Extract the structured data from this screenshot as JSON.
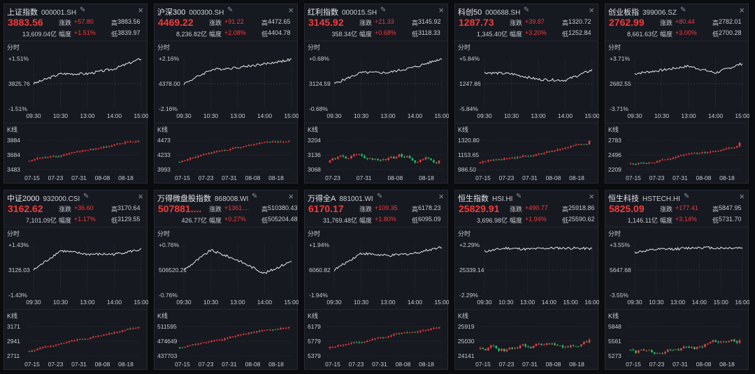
{
  "colors": {
    "up": "#f03c3c",
    "down": "#1fbf6a",
    "line": "#e8e8e8",
    "grid": "#2e323a",
    "bg": "#161920"
  },
  "labels": {
    "change": "涨跌",
    "pct": "幅度",
    "high": "高",
    "low": "低",
    "intraday": "分时",
    "kline": "K线"
  },
  "panels": [
    {
      "name": "上证指数",
      "code": "000001.SH",
      "price": "3883.56",
      "change": "+57.80",
      "pct": "+1.51%",
      "high": "3883.56",
      "low": "3839.97",
      "turnover": "13,609.04亿",
      "intraday": {
        "top": "+1.51%",
        "mid": "3825.76",
        "bottom": "-1.51%",
        "times": [
          "09:30",
          "10:30",
          "13:00",
          "14:00",
          "15:00"
        ]
      },
      "kline": {
        "ticks": [
          "3884",
          "3684",
          "3483"
        ],
        "dates": [
          "07-15",
          "07-23",
          "07-31",
          "08-08",
          "08-18"
        ]
      },
      "chart_data": {
        "type": "line",
        "name": "intraday",
        "x": [
          "09:30",
          "10:30",
          "13:00",
          "14:00",
          "15:00"
        ],
        "y": [
          0.0,
          0.6,
          0.6,
          0.9,
          1.51
        ],
        "ylim": [
          -1.51,
          1.51
        ]
      }
    },
    {
      "name": "沪深300",
      "code": "000300.SH",
      "price": "4469.22",
      "change": "+91.22",
      "pct": "+2.08%",
      "high": "4472.65",
      "low": "4404.78",
      "turnover": "8,236.82亿",
      "intraday": {
        "top": "+2.16%",
        "mid": "4378.00",
        "bottom": "-2.16%",
        "times": [
          "09:30",
          "10:30",
          "13:00",
          "14:00",
          "15:00"
        ]
      },
      "kline": {
        "ticks": [
          "4473",
          "4233",
          "3993"
        ],
        "dates": [
          "07-15",
          "07-23",
          "07-31",
          "08-08",
          "08-18"
        ]
      }
    },
    {
      "name": "红利指数",
      "code": "000015.SH",
      "price": "3145.92",
      "change": "+21.33",
      "pct": "+0.68%",
      "high": "3145.92",
      "low": "3118.33",
      "turnover": "358.34亿",
      "intraday": {
        "top": "+0.68%",
        "mid": "3124.59",
        "bottom": "-0.68%",
        "times": [
          "09:30",
          "10:30",
          "13:00",
          "14:00",
          "15:00"
        ]
      },
      "kline": {
        "ticks": [
          "3204",
          "3136",
          "3068"
        ],
        "dates": [
          "07-23",
          "07-31",
          "08-08",
          "08-18"
        ]
      }
    },
    {
      "name": "科创50",
      "code": "000688.SH",
      "price": "1287.73",
      "change": "+39.87",
      "pct": "+3.20%",
      "high": "1320.72",
      "low": "1252.84",
      "turnover": "1,345.40亿",
      "intraday": {
        "top": "+5.84%",
        "mid": "1247.86",
        "bottom": "-5.84%",
        "times": [
          "09:30",
          "10:30",
          "13:00",
          "14:00",
          "15:00"
        ]
      },
      "kline": {
        "ticks": [
          "1320.80",
          "1153.65",
          "986.50"
        ],
        "dates": [
          "07-15",
          "07-23",
          "07-31",
          "08-08",
          "08-18"
        ]
      }
    },
    {
      "name": "创业板指",
      "code": "399006.SZ",
      "price": "2762.99",
      "change": "+80.44",
      "pct": "+3.00%",
      "high": "2782.01",
      "low": "2700.28",
      "turnover": "8,661.63亿",
      "intraday": {
        "top": "+3.71%",
        "mid": "2682.55",
        "bottom": "-3.71%",
        "times": [
          "09:30",
          "10:30",
          "13:00",
          "14:00",
          "15:00"
        ]
      },
      "kline": {
        "ticks": [
          "2783",
          "2496",
          "2209"
        ],
        "dates": [
          "07-15",
          "07-23",
          "07-31",
          "08-08",
          "08-18"
        ]
      }
    },
    {
      "name": "中证2000",
      "code": "932000.CSI",
      "price": "3162.62",
      "change": "+36.60",
      "pct": "+1.17%",
      "high": "3170.64",
      "low": "3129.55",
      "turnover": "7,101.09亿",
      "intraday": {
        "top": "+1.43%",
        "mid": "3126.03",
        "bottom": "-1.43%",
        "times": [
          "09:30",
          "10:30",
          "13:00",
          "14:00",
          "15:00"
        ]
      },
      "kline": {
        "ticks": [
          "3171",
          "2941",
          "2711"
        ],
        "dates": [
          "07-15",
          "07-23",
          "07-31",
          "08-08",
          "08-18"
        ]
      }
    },
    {
      "name": "万得微盘股指数",
      "code": "868008.WI",
      "price": "507881....",
      "change": "+1361....",
      "pct": "+0.27%",
      "high": "510380.43",
      "low": "505204.48",
      "turnover": "426.77亿",
      "intraday": {
        "top": "+0.76%",
        "mid": "506520.21",
        "bottom": "-0.76%",
        "times": [
          "09:30",
          "10:30",
          "13:00",
          "14:00",
          "15:00"
        ]
      },
      "kline": {
        "ticks": [
          "511595",
          "474649",
          "437703"
        ],
        "dates": [
          "07-15",
          "07-23",
          "07-31",
          "08-08",
          "08-18"
        ]
      }
    },
    {
      "name": "万得全A",
      "code": "881001.WI",
      "price": "6170.17",
      "change": "+109.35",
      "pct": "+1.80%",
      "high": "6178.23",
      "low": "6095.09",
      "turnover": "31,769.48亿",
      "intraday": {
        "top": "+1.94%",
        "mid": "6060.82",
        "bottom": "-1.94%",
        "times": [
          "09:30",
          "10:30",
          "13:00",
          "14:00",
          "15:00"
        ]
      },
      "kline": {
        "ticks": [
          "6179",
          "5779",
          "5379"
        ],
        "dates": [
          "07-15",
          "07-23",
          "07-31",
          "08-08",
          "08-18"
        ]
      }
    },
    {
      "name": "恒生指数",
      "code": "HSI.HI",
      "price": "25829.91",
      "change": "+490.77",
      "pct": "+1.94%",
      "high": "25918.86",
      "low": "25590.62",
      "turnover": "3,696.98亿",
      "intraday": {
        "top": "+2.29%",
        "mid": "25339.14",
        "bottom": "-2.29%",
        "times": [
          "09:30",
          "10:30",
          "13:00",
          "14:00",
          "15:00",
          "16:00"
        ]
      },
      "kline": {
        "ticks": [
          "25919",
          "25030",
          "24141"
        ],
        "dates": [
          "07-15",
          "07-23",
          "07-31",
          "08-08",
          "08-18"
        ]
      }
    },
    {
      "name": "恒生科技",
      "code": "HSTECH.HI",
      "price": "5825.09",
      "change": "+177.41",
      "pct": "+3.14%",
      "high": "5847.95",
      "low": "5731.70",
      "turnover": "1,146.11亿",
      "intraday": {
        "top": "+3.55%",
        "mid": "5647.68",
        "bottom": "-3.55%",
        "times": [
          "09:30",
          "10:30",
          "13:00",
          "14:00",
          "15:00",
          "16:00"
        ]
      },
      "kline": {
        "ticks": [
          "5848",
          "5561",
          "5273"
        ],
        "dates": [
          "07-15",
          "07-23",
          "07-31",
          "08-08",
          "08-18"
        ]
      }
    }
  ],
  "chart_data": [
    {
      "type": "line",
      "title": "上证指数 分时",
      "y_unit": "%",
      "x": [
        "09:30",
        "10:30",
        "13:00",
        "14:00",
        "15:00"
      ],
      "y": [
        0.0,
        0.6,
        0.6,
        0.9,
        1.51
      ],
      "ylim": [
        -1.51,
        1.51
      ]
    },
    {
      "type": "line",
      "title": "沪深300 分时",
      "y_unit": "%",
      "x": [
        "09:30",
        "10:30",
        "13:00",
        "14:00",
        "15:00"
      ],
      "y": [
        0.0,
        1.2,
        1.4,
        1.7,
        2.08
      ],
      "ylim": [
        -2.16,
        2.16
      ]
    },
    {
      "type": "line",
      "title": "红利指数 分时",
      "y_unit": "%",
      "x": [
        "09:30",
        "10:30",
        "13:00",
        "14:00",
        "15:00"
      ],
      "y": [
        0.0,
        0.3,
        0.3,
        0.45,
        0.68
      ],
      "ylim": [
        -0.68,
        0.68
      ]
    },
    {
      "type": "line",
      "title": "科创50 分时",
      "y_unit": "%",
      "x": [
        "09:30",
        "10:30",
        "13:00",
        "14:00",
        "15:00"
      ],
      "y": [
        2.6,
        2.3,
        1.0,
        0.8,
        3.2
      ],
      "ylim": [
        -5.84,
        5.84
      ]
    },
    {
      "type": "line",
      "title": "创业板指 分时",
      "y_unit": "%",
      "x": [
        "09:30",
        "10:30",
        "13:00",
        "14:00",
        "15:00"
      ],
      "y": [
        1.5,
        2.0,
        2.6,
        1.6,
        3.0
      ],
      "ylim": [
        -3.71,
        3.71
      ]
    },
    {
      "type": "line",
      "title": "中证2000 分时",
      "y_unit": "%",
      "x": [
        "09:30",
        "10:30",
        "13:00",
        "14:00",
        "15:00"
      ],
      "y": [
        0.0,
        1.1,
        0.9,
        0.9,
        1.17
      ],
      "ylim": [
        -1.43,
        1.43
      ]
    },
    {
      "type": "line",
      "title": "万得微盘股指数 分时",
      "y_unit": "%",
      "x": [
        "09:30",
        "10:30",
        "13:00",
        "14:00",
        "15:00"
      ],
      "y": [
        0.0,
        0.6,
        0.3,
        -0.1,
        0.27
      ],
      "ylim": [
        -0.76,
        0.76
      ]
    },
    {
      "type": "line",
      "title": "万得全A 分时",
      "y_unit": "%",
      "x": [
        "09:30",
        "10:30",
        "13:00",
        "14:00",
        "15:00"
      ],
      "y": [
        0.0,
        1.3,
        1.1,
        1.3,
        1.8
      ],
      "ylim": [
        -1.94,
        1.94
      ]
    },
    {
      "type": "line",
      "title": "恒生指数 分时",
      "y_unit": "%",
      "x": [
        "09:30",
        "10:30",
        "13:00",
        "14:00",
        "15:00",
        "16:00"
      ],
      "y": [
        1.7,
        2.0,
        1.9,
        2.0,
        2.0,
        1.94
      ],
      "ylim": [
        -2.29,
        2.29
      ]
    },
    {
      "type": "line",
      "title": "恒生科技 分时",
      "y_unit": "%",
      "x": [
        "09:30",
        "10:30",
        "13:00",
        "14:00",
        "15:00",
        "16:00"
      ],
      "y": [
        2.5,
        2.9,
        3.0,
        3.2,
        3.1,
        3.14
      ],
      "ylim": [
        -3.55,
        3.55
      ]
    }
  ]
}
